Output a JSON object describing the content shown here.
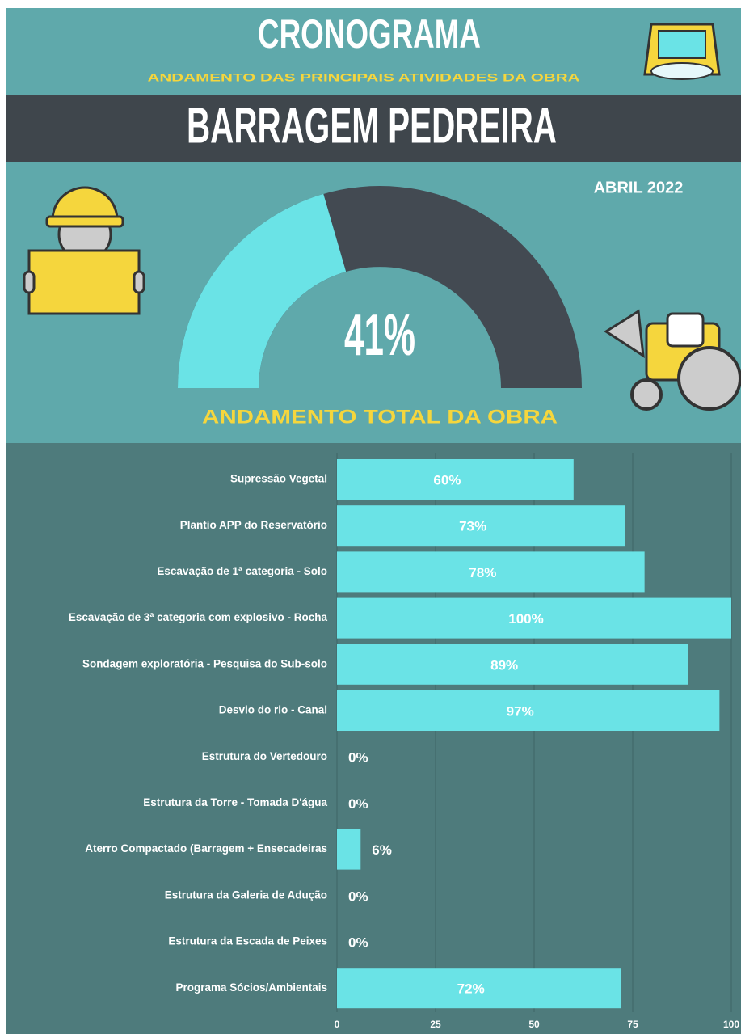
{
  "header": {
    "title": "CRONOGRAMA",
    "subtitle": "ANDAMENTO DAS PRINCIPAIS ATIVIDADES DA OBRA",
    "name": "BARRAGEM PEDREIRA",
    "date": "ABRIL 2022"
  },
  "chart_data": [
    {
      "type": "gauge",
      "title": "ANDAMENTO TOTAL DA OBRA",
      "values": [
        41
      ],
      "value_labels": [
        "41%"
      ],
      "ylim": [
        0,
        100
      ],
      "color": "#6ae3e6",
      "track_color": "#434a52"
    },
    {
      "type": "bar",
      "orientation": "horizontal",
      "categories": [
        "Supressão Vegetal",
        "Plantio APP do Reservatório",
        "Escavação de 1ª categoria - Solo",
        "Escavação de 3ª categoria com explosivo - Rocha",
        "Sondagem exploratória - Pesquisa do Sub-solo",
        "Desvio do rio - Canal",
        "Estrutura do Vertedouro",
        "Estrutura da Torre - Tomada D'água",
        "Aterro Compactado (Barragem + Ensecadeiras",
        "Estrutura da Galeria de Adução",
        "Estrutura da Escada de Peixes",
        "Programa Sócios/Ambientais"
      ],
      "values": [
        60,
        73,
        78,
        100,
        89,
        97,
        0,
        0,
        6,
        0,
        0,
        72
      ],
      "value_labels": [
        "60%",
        "73%",
        "78%",
        "100%",
        "89%",
        "97%",
        "0%",
        "0%",
        "6%",
        "0%",
        "0%",
        "72%"
      ],
      "color": "#6ae3e6",
      "xlim": [
        0,
        100
      ],
      "xticks": [
        0,
        25,
        50,
        75,
        100
      ],
      "grid": true
    }
  ]
}
